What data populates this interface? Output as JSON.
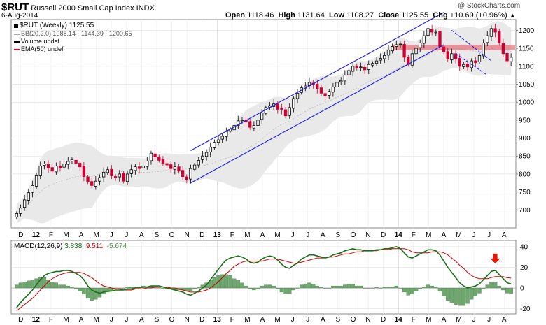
{
  "header": {
    "symbol": "$RUT",
    "name": "Russell 2000 Small Cap Index",
    "exchange": "INDX",
    "date": "6-Aug-2014",
    "open_label": "Open",
    "open": "1118.46",
    "high_label": "High",
    "high": "1131.64",
    "low_label": "Low",
    "low": "1108.27",
    "close_label": "Close",
    "close": "1125.55",
    "chg_label": "Chg",
    "chg": "+10.69 (+0.96%)",
    "chg_arrow": "▲",
    "watermark": "@ StockCharts.com"
  },
  "legend": {
    "price": "$RUT (Weekly) 1125.55",
    "bb": "BB(20,2.0) 1088.14 - 1144.39 - 1200.65",
    "volume": "Volume undef",
    "ema": "EMA(50) undef"
  },
  "macd_legend": {
    "label": "MACD(12,26,9)",
    "macd": "3.838,",
    "signal": "9.511,",
    "hist": "-5.674"
  },
  "colors": {
    "up": "#000000",
    "down": "#cc0033",
    "band_fill": "#e9e9e9",
    "channel": "#1a1aee",
    "macd_line": "#1a6e1a",
    "signal_line": "#cc0000",
    "histogram": "#6ea86e",
    "zone": "#e64a5a",
    "arrow": "#ee1100"
  },
  "chart_data": [
    {
      "type": "candlestick",
      "title": "$RUT Russell 2000 Small Cap Index (Weekly)",
      "ylim": [
        650,
        1230
      ],
      "y_ticks": [
        700,
        750,
        800,
        850,
        900,
        950,
        1000,
        1050,
        1100,
        1150,
        1200
      ],
      "x_labels": [
        "D",
        "12",
        "F",
        "M",
        "A",
        "M",
        "J",
        "J",
        "A",
        "S",
        "O",
        "N",
        "D",
        "13",
        "F",
        "M",
        "A",
        "M",
        "J",
        "J",
        "A",
        "S",
        "O",
        "N",
        "D",
        "14",
        "F",
        "M",
        "A",
        "M",
        "J",
        "J",
        "A"
      ],
      "weekly_close": [
        690,
        705,
        728,
        748,
        768,
        795,
        822,
        828,
        817,
        808,
        822,
        817,
        828,
        835,
        840,
        830,
        820,
        793,
        778,
        768,
        780,
        790,
        805,
        812,
        795,
        792,
        800,
        780,
        800,
        812,
        820,
        815,
        822,
        836,
        858,
        848,
        838,
        830,
        825,
        815,
        820,
        808,
        793,
        785,
        815,
        825,
        838,
        850,
        860,
        875,
        888,
        895,
        905,
        918,
        925,
        935,
        948,
        950,
        945,
        930,
        935,
        950,
        970,
        985,
        990,
        995,
        980,
        980,
        962,
        985,
        1010,
        1025,
        1040,
        1045,
        1055,
        1050,
        1038,
        1025,
        1018,
        1030,
        1042,
        1055,
        1060,
        1075,
        1088,
        1100,
        1095,
        1098,
        1090,
        1105,
        1108,
        1115,
        1122,
        1130,
        1145,
        1155,
        1160,
        1162,
        1125,
        1105,
        1135,
        1150,
        1165,
        1185,
        1205,
        1195,
        1195,
        1155,
        1140,
        1120,
        1135,
        1120,
        1100,
        1105,
        1098,
        1115,
        1110,
        1130,
        1165,
        1185,
        1205,
        1195,
        1165,
        1135,
        1115,
        1125
      ],
      "bollinger": {
        "period": 20,
        "stddev": 2.0,
        "lower_last": 1088.14,
        "middle_last": 1144.39,
        "upper_last": 1200.65
      },
      "channel": {
        "lower": [
          [
            44,
            775
          ],
          [
            108,
            1160
          ]
        ],
        "upper": [
          [
            44,
            865
          ],
          [
            108,
            1250
          ]
        ]
      },
      "resistance_zone": [
        1145,
        1160
      ],
      "falling_wedge": {
        "upper": [
          [
            110,
            1200
          ],
          [
            120,
            1115
          ]
        ],
        "lower": [
          [
            111,
            1135
          ],
          [
            119,
            1075
          ]
        ]
      }
    },
    {
      "type": "line",
      "title": "MACD(12,26,9)",
      "ylim": [
        -25,
        46
      ],
      "y_ticks": [
        -20,
        0,
        20,
        40
      ],
      "macd_last": 3.838,
      "signal_last": 9.511,
      "histogram_last": -5.674,
      "macd": [
        -19,
        -14,
        -10,
        -6,
        -2,
        3,
        8,
        12,
        14,
        15,
        16,
        16,
        17,
        17,
        16,
        14,
        12,
        8,
        2,
        -2,
        -4,
        -5,
        -4,
        -3,
        -3,
        -2,
        -2,
        -2,
        -1,
        -1,
        0,
        0,
        1,
        1,
        2,
        2,
        2,
        1,
        0,
        -1,
        -2,
        -3,
        -4,
        -6,
        -7,
        -5,
        -3,
        0,
        3,
        8,
        13,
        18,
        23,
        27,
        29,
        30,
        31,
        30,
        28,
        25,
        24,
        25,
        28,
        30,
        31,
        30,
        27,
        23,
        20,
        19,
        22,
        24,
        28,
        30,
        32,
        32,
        31,
        30,
        29,
        30,
        32,
        33,
        34,
        36,
        37,
        38,
        37,
        37,
        36,
        36,
        36,
        37,
        37,
        38,
        38,
        39,
        40,
        38,
        34,
        30,
        29,
        31,
        33,
        35,
        37,
        37,
        36,
        32,
        26,
        20,
        15,
        10,
        5,
        2,
        0,
        1,
        2,
        4,
        8,
        12,
        16,
        17,
        13,
        9,
        5,
        3.8
      ],
      "signal": [
        -22,
        -19,
        -16,
        -13,
        -10,
        -6,
        -2,
        2,
        6,
        9,
        11,
        13,
        14,
        15,
        15,
        15,
        15,
        14,
        12,
        10,
        7,
        4,
        2,
        1,
        0,
        -1,
        -1,
        -2,
        -2,
        -2,
        -1,
        -1,
        -1,
        0,
        0,
        1,
        1,
        1,
        1,
        0,
        0,
        -1,
        -2,
        -3,
        -4,
        -4,
        -4,
        -3,
        -2,
        0,
        3,
        6,
        10,
        14,
        17,
        21,
        23,
        25,
        26,
        26,
        26,
        26,
        26,
        27,
        28,
        28,
        28,
        27,
        26,
        25,
        24,
        24,
        25,
        26,
        27,
        28,
        29,
        29,
        29,
        30,
        30,
        31,
        32,
        33,
        33,
        34,
        35,
        35,
        36,
        36,
        36,
        36,
        37,
        37,
        37,
        38,
        38,
        38,
        38,
        37,
        35,
        34,
        34,
        34,
        34,
        35,
        35,
        35,
        34,
        32,
        29,
        26,
        22,
        19,
        15,
        12,
        10,
        9,
        9,
        9,
        10,
        11,
        11,
        11,
        10,
        9.5
      ]
    }
  ]
}
